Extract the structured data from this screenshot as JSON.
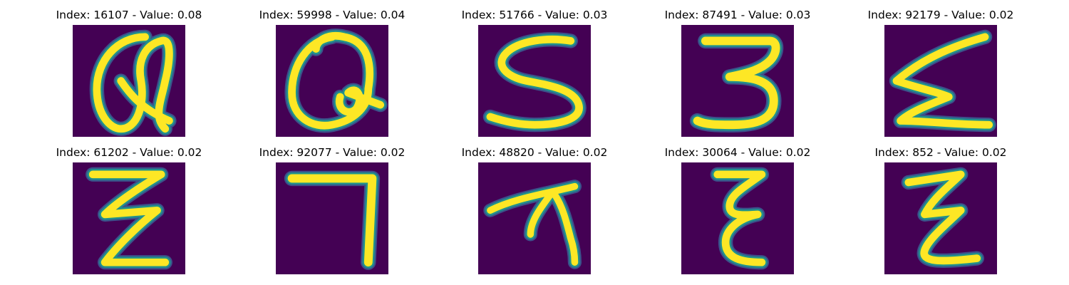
{
  "figure": {
    "panels": [
      {
        "title": "Index: 16107 - Value: 0.08",
        "glyph": "Q-loop"
      },
      {
        "title": "Index: 59998 - Value: 0.04",
        "glyph": "Q"
      },
      {
        "title": "Index: 51766 - Value: 0.03",
        "glyph": "S"
      },
      {
        "title": "Index: 87491 - Value: 0.03",
        "glyph": "3"
      },
      {
        "title": "Index: 92179 - Value: 0.02",
        "glyph": "Sigma"
      },
      {
        "title": "Index: 61202 - Value: 0.02",
        "glyph": "Z-double"
      },
      {
        "title": "Index: 92077 - Value: 0.02",
        "glyph": "7-corner"
      },
      {
        "title": "Index: 48820 - Value: 0.02",
        "glyph": "pi-like"
      },
      {
        "title": "Index: 30064 - Value: 0.02",
        "glyph": "epsilon"
      },
      {
        "title": "Index: 852 - Value: 0.02",
        "glyph": "Z-double"
      }
    ],
    "colors": {
      "background": "#440154",
      "stroke_core": "#fde725",
      "stroke_mid": "#21918c",
      "stroke_edge": "#3b528b"
    }
  }
}
